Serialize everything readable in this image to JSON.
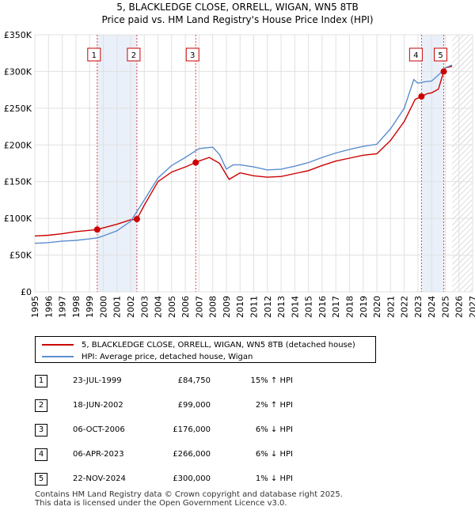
{
  "title_line1": "5, BLACKLEDGE CLOSE, ORRELL, WIGAN, WN5 8TB",
  "title_line2": "Price paid vs. HM Land Registry's House Price Index (HPI)",
  "chart_data": {
    "type": "line",
    "title": "5, BLACKLEDGE CLOSE, ORRELL, WIGAN, WN5 8TB — Price paid vs. HM Land Registry's House Price Index (HPI)",
    "xlabel": "",
    "ylabel": "",
    "xlim": [
      1995,
      2027
    ],
    "ylim": [
      0,
      350000
    ],
    "y_ticks": [
      0,
      50000,
      100000,
      150000,
      200000,
      250000,
      300000,
      350000
    ],
    "y_tick_labels": [
      "£0",
      "£50K",
      "£100K",
      "£150K",
      "£200K",
      "£250K",
      "£300K",
      "£350K"
    ],
    "x_ticks": [
      1995,
      1996,
      1997,
      1998,
      1999,
      2000,
      2001,
      2002,
      2003,
      2004,
      2005,
      2006,
      2007,
      2008,
      2009,
      2010,
      2011,
      2012,
      2013,
      2014,
      2015,
      2016,
      2017,
      2018,
      2019,
      2020,
      2021,
      2022,
      2023,
      2024,
      2025,
      2026,
      2027
    ],
    "x_tick_labels": [
      "1995",
      "1996",
      "1997",
      "1998",
      "1999",
      "2000",
      "2001",
      "2002",
      "2003",
      "2004",
      "2005",
      "2006",
      "2007",
      "2008",
      "2009",
      "2010",
      "2011",
      "2012",
      "2013",
      "2014",
      "2015",
      "2016",
      "2017",
      "2018",
      "2019",
      "2020",
      "2021",
      "2022",
      "2023",
      "2024",
      "2025",
      "2026",
      "2027"
    ],
    "grid": true,
    "series": [
      {
        "name": "5, BLACKLEDGE CLOSE, ORRELL, WIGAN, WN5 8TB (detached house)",
        "color": "#cc0000",
        "x": [
          1995,
          1996,
          1997,
          1998,
          1999.56,
          2000,
          2001,
          2002,
          2002.46,
          2003,
          2004,
          2005,
          2006,
          2006.76,
          2007,
          2007.75,
          2008.5,
          2009.2,
          2010,
          2011,
          2012,
          2013,
          2014,
          2015,
          2016,
          2017,
          2018,
          2019,
          2020,
          2021,
          2022,
          2022.8,
          2023.26,
          2023.7,
          2024,
          2024.5,
          2024.89,
          2025,
          2025.5
        ],
        "y": [
          76000,
          77000,
          79000,
          82000,
          84750,
          87000,
          92000,
          98000,
          99000,
          118000,
          150000,
          163000,
          170000,
          176000,
          178000,
          183000,
          175000,
          153000,
          162000,
          158000,
          156000,
          157000,
          161000,
          165000,
          172000,
          178000,
          182000,
          186000,
          188000,
          206000,
          232000,
          262000,
          266000,
          270000,
          271000,
          276000,
          300000,
          305000,
          307000
        ]
      },
      {
        "name": "HPI: Average price, detached house, Wigan",
        "color": "#5b8ecf",
        "x": [
          1995,
          1996,
          1997,
          1998,
          1999,
          1999.56,
          2000,
          2001,
          2002,
          2003,
          2004,
          2005,
          2006,
          2007,
          2008,
          2008.5,
          2009,
          2009.5,
          2010,
          2011,
          2012,
          2013,
          2014,
          2015,
          2016,
          2017,
          2018,
          2019,
          2020,
          2021,
          2022,
          2022.7,
          2023,
          2023.5,
          2024,
          2024.9,
          2025,
          2025.5
        ],
        "y": [
          66000,
          67000,
          69000,
          70000,
          72000,
          73500,
          76000,
          83000,
          96000,
          125000,
          155000,
          172000,
          183000,
          195000,
          197000,
          187000,
          167000,
          173000,
          173000,
          170000,
          166000,
          167000,
          171000,
          176000,
          183000,
          189000,
          194000,
          198000,
          201000,
          222000,
          250000,
          289000,
          284000,
          286000,
          287000,
          302000,
          305000,
          309000
        ]
      }
    ],
    "sales": [
      {
        "label": "1",
        "x": 1999.56,
        "y": 84750
      },
      {
        "label": "2",
        "x": 2002.46,
        "y": 99000
      },
      {
        "label": "3",
        "x": 2006.76,
        "y": 176000
      },
      {
        "label": "4",
        "x": 2023.26,
        "y": 266000
      },
      {
        "label": "5",
        "x": 2024.89,
        "y": 300000
      }
    ],
    "shaded_periods": [
      [
        1999.56,
        2002.46
      ],
      [
        2023.26,
        2024.89
      ]
    ],
    "forecast_start": 2025.5
  },
  "legend": {
    "property_label": "5, BLACKLEDGE CLOSE, ORRELL, WIGAN, WN5 8TB (detached house)",
    "hpi_label": "HPI: Average price, detached house, Wigan"
  },
  "transactions": [
    {
      "num": "1",
      "date": "23-JUL-1999",
      "price": "£84,750",
      "hpi": "15% ↑ HPI"
    },
    {
      "num": "2",
      "date": "18-JUN-2002",
      "price": "£99,000",
      "hpi": "2% ↑ HPI"
    },
    {
      "num": "3",
      "date": "06-OCT-2006",
      "price": "£176,000",
      "hpi": "6% ↓ HPI"
    },
    {
      "num": "4",
      "date": "06-APR-2023",
      "price": "£266,000",
      "hpi": "6% ↓ HPI"
    },
    {
      "num": "5",
      "date": "22-NOV-2024",
      "price": "£300,000",
      "hpi": "1% ↓ HPI"
    }
  ],
  "footer_line1": "Contains HM Land Registry data © Crown copyright and database right 2025.",
  "footer_line2": "This data is licensed under the Open Government Licence v3.0."
}
